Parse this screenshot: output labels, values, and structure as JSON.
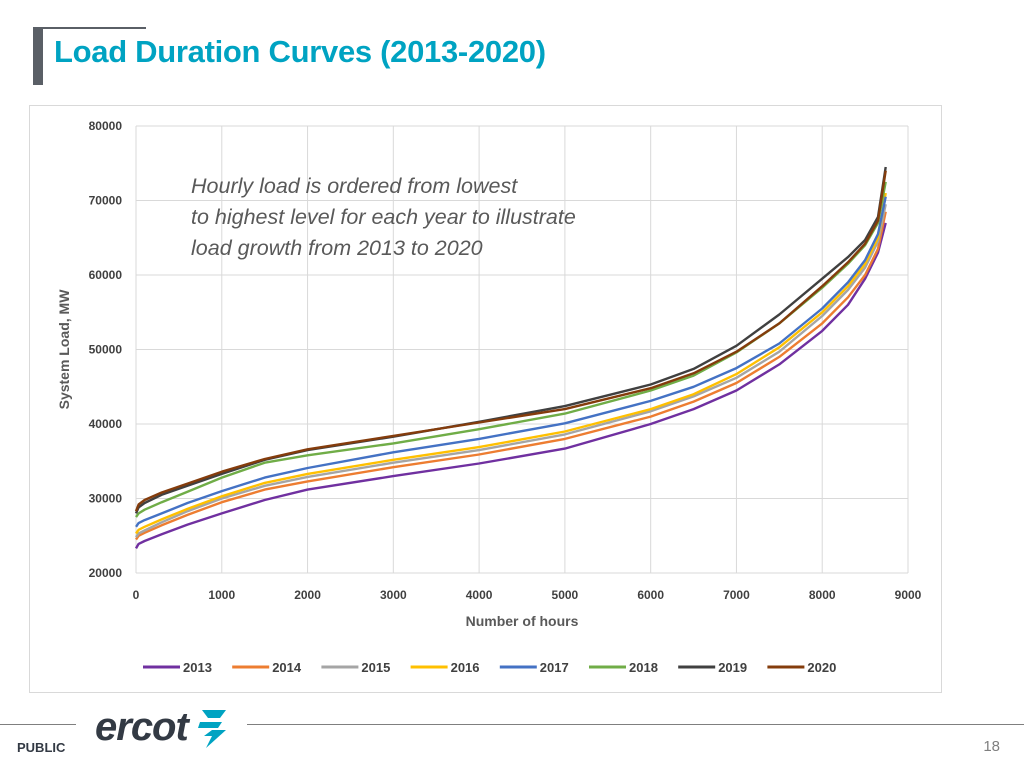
{
  "page": {
    "title": "Load Duration Curves (2013-2020)",
    "footer_label": "PUBLIC",
    "page_number": "18",
    "logo_text": "ercot"
  },
  "colors": {
    "title": "#00a3c2",
    "accent_bar": "#5a5f66"
  },
  "chart_data": {
    "type": "line",
    "title": "",
    "annotation": "Hourly load is ordered from lowest to highest level for each year to illustrate load growth from 2013 to 2020",
    "xlabel": "Number of hours",
    "ylabel": "System Load, MW",
    "xlim": [
      0,
      9000
    ],
    "ylim": [
      20000,
      80000
    ],
    "xticks": [
      0,
      1000,
      2000,
      3000,
      4000,
      5000,
      6000,
      7000,
      8000,
      9000
    ],
    "yticks": [
      20000,
      30000,
      40000,
      50000,
      60000,
      70000,
      80000
    ],
    "grid": true,
    "legend_position": "bottom",
    "x": [
      0,
      30,
      100,
      300,
      600,
      1000,
      1500,
      2000,
      3000,
      4000,
      5000,
      6000,
      6500,
      7000,
      7500,
      8000,
      8300,
      8500,
      8650,
      8740
    ],
    "series": [
      {
        "name": "2013",
        "color": "#7030a0",
        "values": [
          23300,
          23900,
          24300,
          25200,
          26500,
          28000,
          29800,
          31200,
          33000,
          34700,
          36700,
          40000,
          42000,
          44500,
          48000,
          52500,
          56000,
          59500,
          63000,
          67000
        ]
      },
      {
        "name": "2014",
        "color": "#ed7d31",
        "values": [
          24500,
          25000,
          25400,
          26400,
          27800,
          29500,
          31200,
          32300,
          34200,
          35900,
          38000,
          41000,
          43000,
          45500,
          49000,
          53500,
          57000,
          60000,
          63500,
          68500
        ]
      },
      {
        "name": "2015",
        "color": "#a5a5a5",
        "values": [
          24800,
          25300,
          25700,
          26800,
          28300,
          30000,
          31700,
          32900,
          34800,
          36500,
          38600,
          41700,
          43700,
          46200,
          49700,
          54500,
          58000,
          61000,
          64500,
          69500
        ]
      },
      {
        "name": "2016",
        "color": "#ffc000",
        "values": [
          25300,
          25800,
          26200,
          27200,
          28600,
          30300,
          32100,
          33300,
          35200,
          36900,
          39000,
          42000,
          44000,
          46700,
          50300,
          55000,
          58500,
          61500,
          65000,
          71000
        ]
      },
      {
        "name": "2017",
        "color": "#4472c4",
        "values": [
          26200,
          26700,
          27100,
          28000,
          29400,
          31000,
          32800,
          34100,
          36200,
          38000,
          40100,
          43100,
          45000,
          47500,
          50800,
          55500,
          59000,
          62000,
          65500,
          70500
        ]
      },
      {
        "name": "2018",
        "color": "#70ad47",
        "values": [
          27500,
          28000,
          28500,
          29500,
          30900,
          32800,
          34800,
          35800,
          37400,
          39300,
          41400,
          44500,
          46500,
          49600,
          53500,
          58300,
          61500,
          64000,
          67000,
          72500
        ]
      },
      {
        "name": "2019",
        "color": "#404040",
        "values": [
          28000,
          28800,
          29400,
          30500,
          31700,
          33300,
          35200,
          36500,
          38300,
          40300,
          42400,
          45300,
          47400,
          50500,
          54700,
          59500,
          62400,
          64700,
          67800,
          74500
        ]
      },
      {
        "name": "2020",
        "color": "#843c0c",
        "values": [
          28300,
          29200,
          29800,
          30800,
          32000,
          33600,
          35300,
          36600,
          38400,
          40200,
          42000,
          44800,
          46800,
          49700,
          53500,
          58500,
          61700,
          64200,
          67300,
          74000
        ]
      }
    ]
  }
}
